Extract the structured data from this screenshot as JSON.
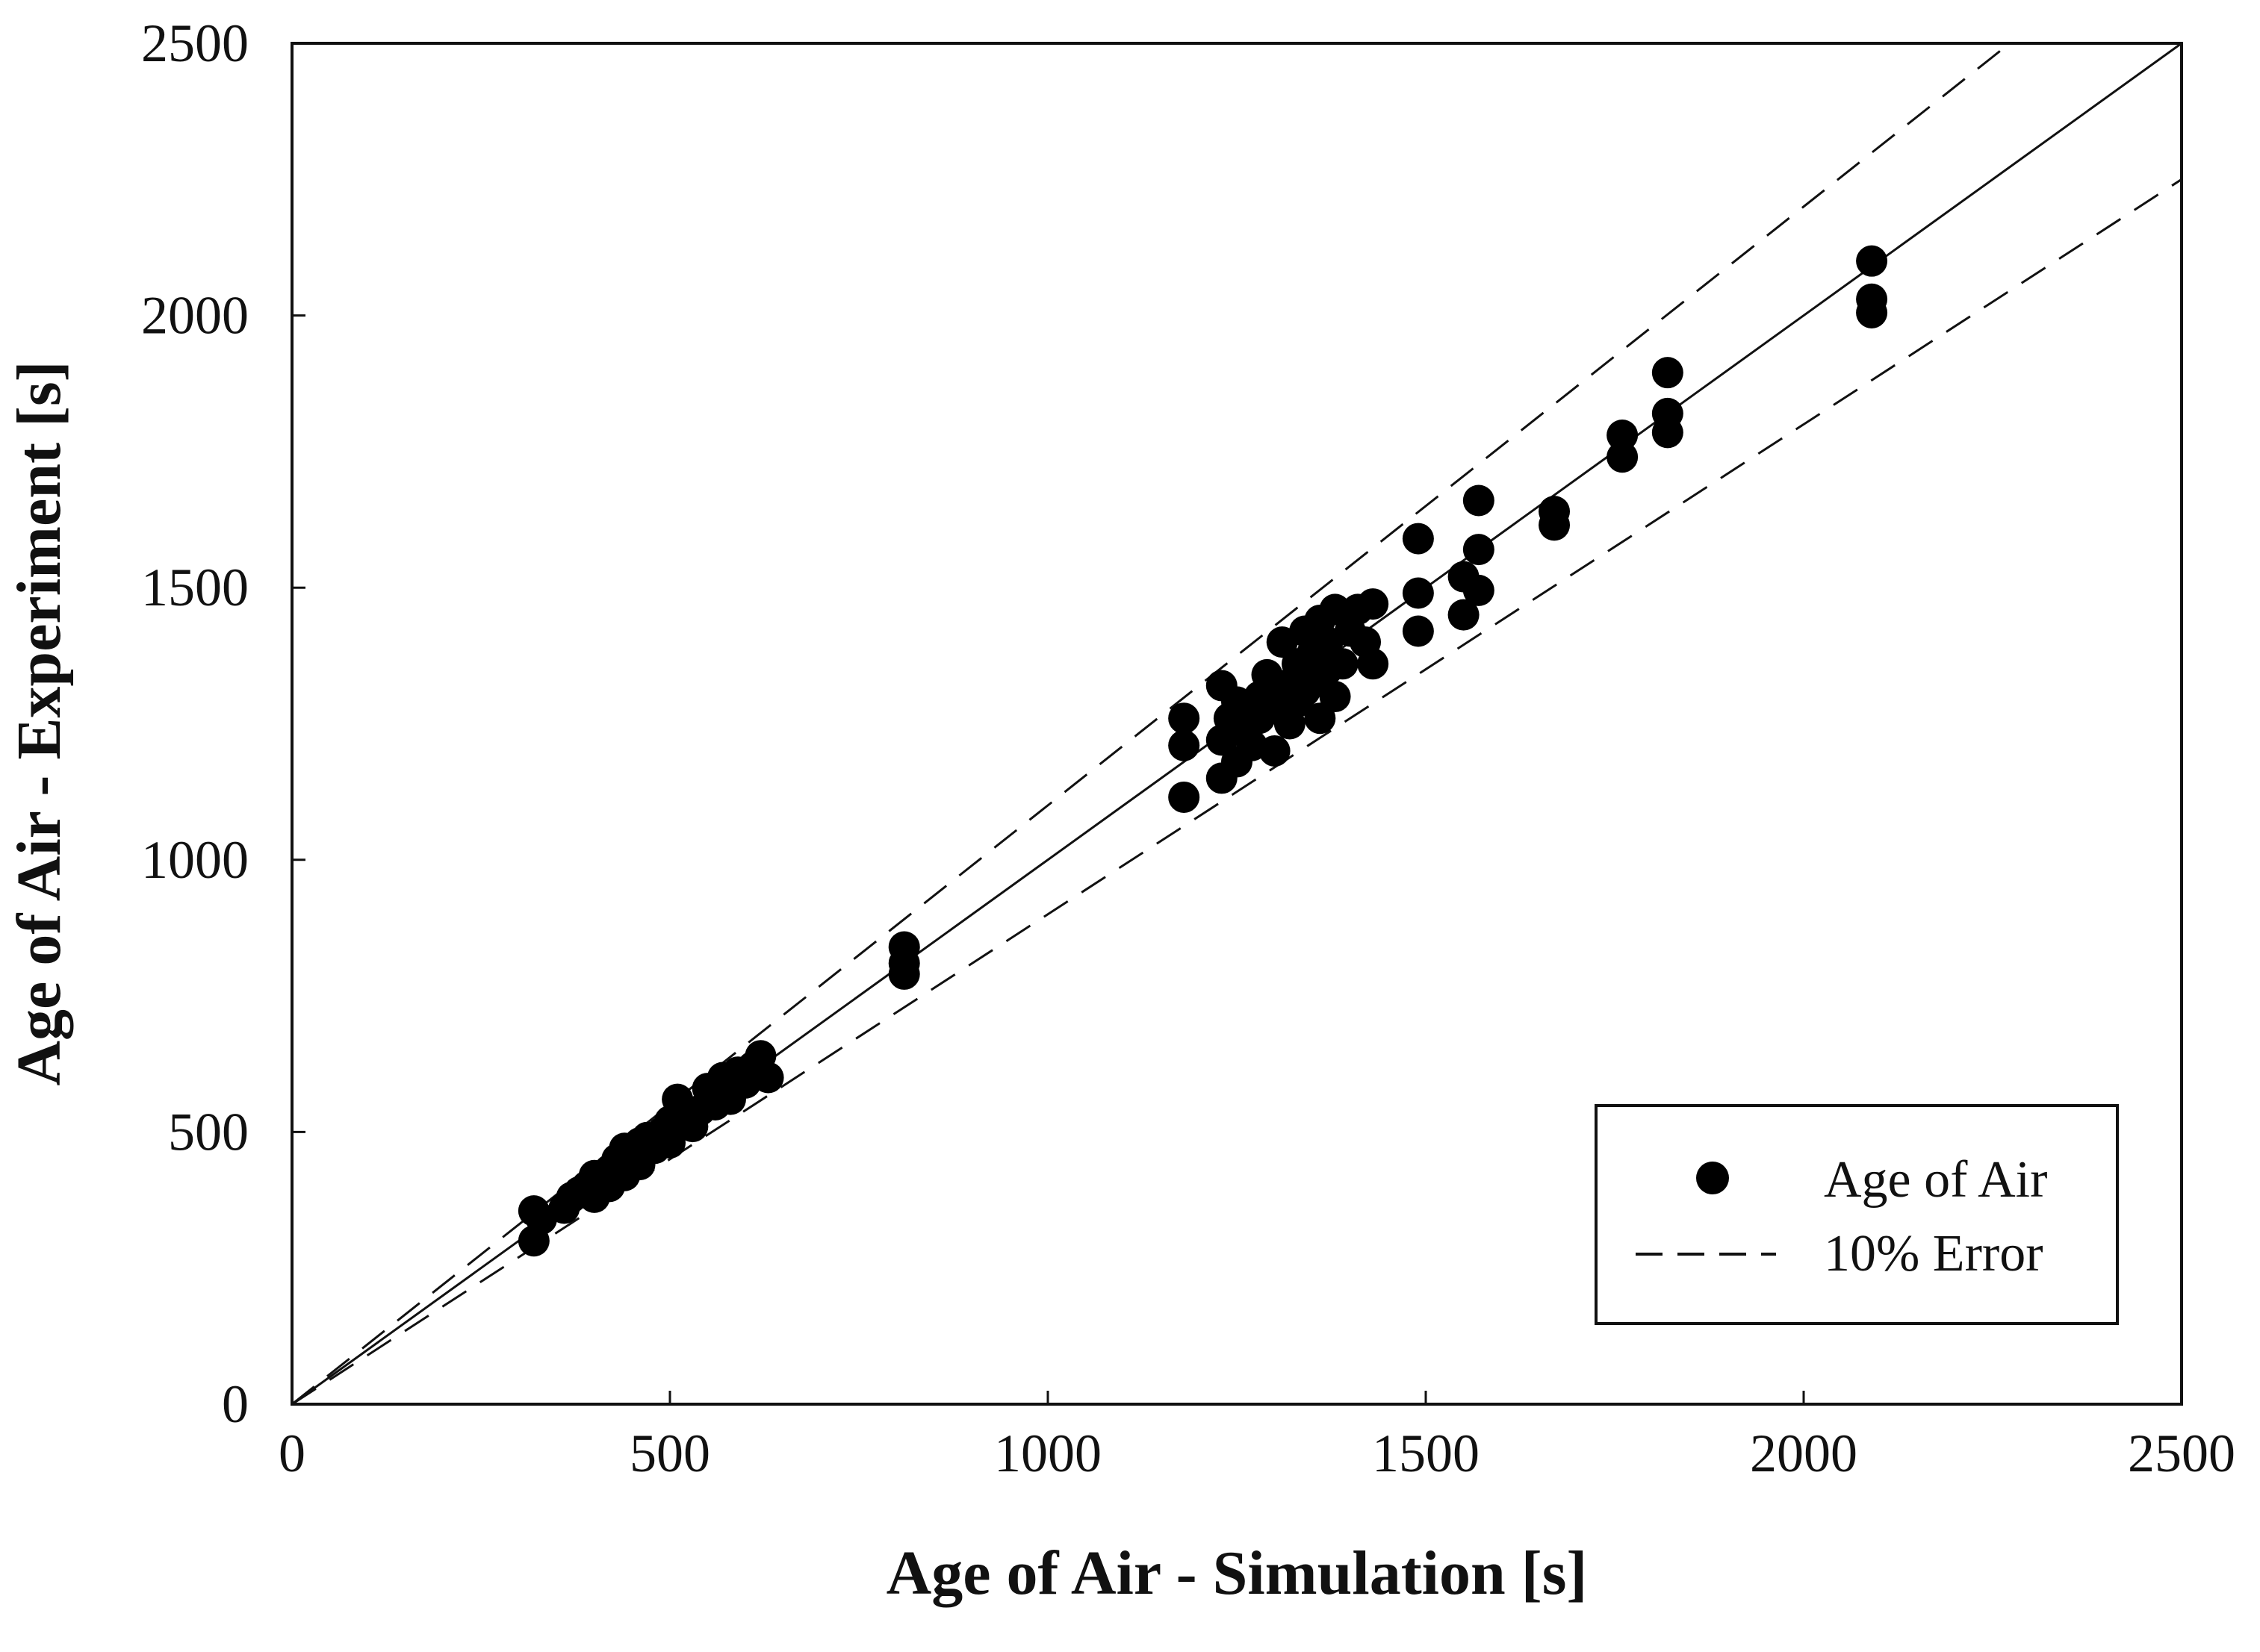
{
  "chart_data": {
    "type": "scatter",
    "title": "",
    "xlabel": "Age of Air - Simulation [s]",
    "ylabel": "Age of Air - Experiment [s]",
    "xlim": [
      0,
      2500
    ],
    "ylim": [
      0,
      2500
    ],
    "xticks": [
      "0",
      "500",
      "1000",
      "1500",
      "2000",
      "2500"
    ],
    "yticks": [
      "0",
      "500",
      "1000",
      "1500",
      "2000",
      "2500"
    ],
    "grid": false,
    "legend_position": "bottom-right",
    "legend": [
      {
        "label": "Age of Air",
        "marker": "filled-circle"
      },
      {
        "label": "10% Error",
        "marker": "dashed-line"
      }
    ],
    "reference_lines": [
      {
        "name": "y = x",
        "slope": 1.0,
        "style": "solid"
      },
      {
        "name": "+10% error",
        "slope": 1.1,
        "style": "dashed"
      },
      {
        "name": "-10% error",
        "slope": 0.9,
        "style": "dashed"
      }
    ],
    "series": [
      {
        "name": "Age of Air",
        "points": [
          [
            320,
            355
          ],
          [
            320,
            300
          ],
          [
            330,
            340
          ],
          [
            360,
            360
          ],
          [
            370,
            380
          ],
          [
            380,
            390
          ],
          [
            390,
            400
          ],
          [
            400,
            420
          ],
          [
            400,
            380
          ],
          [
            410,
            410
          ],
          [
            420,
            430
          ],
          [
            420,
            400
          ],
          [
            430,
            450
          ],
          [
            440,
            470
          ],
          [
            440,
            420
          ],
          [
            450,
            460
          ],
          [
            460,
            440
          ],
          [
            460,
            480
          ],
          [
            470,
            490
          ],
          [
            480,
            470
          ],
          [
            490,
            500
          ],
          [
            500,
            520
          ],
          [
            500,
            480
          ],
          [
            510,
            560
          ],
          [
            520,
            530
          ],
          [
            530,
            510
          ],
          [
            540,
            540
          ],
          [
            550,
            580
          ],
          [
            560,
            550
          ],
          [
            570,
            600
          ],
          [
            580,
            560
          ],
          [
            590,
            610
          ],
          [
            600,
            590
          ],
          [
            610,
            620
          ],
          [
            620,
            640
          ],
          [
            630,
            600
          ],
          [
            810,
            840
          ],
          [
            810,
            810
          ],
          [
            810,
            790
          ],
          [
            1180,
            1260
          ],
          [
            1180,
            1210
          ],
          [
            1180,
            1115
          ],
          [
            1230,
            1320
          ],
          [
            1230,
            1220
          ],
          [
            1230,
            1150
          ],
          [
            1240,
            1260
          ],
          [
            1250,
            1290
          ],
          [
            1250,
            1180
          ],
          [
            1260,
            1240
          ],
          [
            1270,
            1210
          ],
          [
            1280,
            1300
          ],
          [
            1280,
            1260
          ],
          [
            1290,
            1340
          ],
          [
            1300,
            1280
          ],
          [
            1300,
            1200
          ],
          [
            1310,
            1400
          ],
          [
            1310,
            1320
          ],
          [
            1320,
            1250
          ],
          [
            1330,
            1360
          ],
          [
            1330,
            1290
          ],
          [
            1340,
            1420
          ],
          [
            1340,
            1310
          ],
          [
            1350,
            1380
          ],
          [
            1350,
            1330
          ],
          [
            1360,
            1440
          ],
          [
            1360,
            1260
          ],
          [
            1370,
            1350
          ],
          [
            1370,
            1400
          ],
          [
            1380,
            1460
          ],
          [
            1380,
            1300
          ],
          [
            1390,
            1360
          ],
          [
            1400,
            1420
          ],
          [
            1410,
            1460
          ],
          [
            1420,
            1400
          ],
          [
            1430,
            1470
          ],
          [
            1430,
            1360
          ],
          [
            1490,
            1590
          ],
          [
            1490,
            1490
          ],
          [
            1490,
            1420
          ],
          [
            1550,
            1520
          ],
          [
            1550,
            1450
          ],
          [
            1570,
            1660
          ],
          [
            1570,
            1570
          ],
          [
            1570,
            1495
          ],
          [
            1670,
            1640
          ],
          [
            1670,
            1615
          ],
          [
            1760,
            1780
          ],
          [
            1760,
            1740
          ],
          [
            1820,
            1895
          ],
          [
            1820,
            1820
          ],
          [
            1820,
            1785
          ],
          [
            2090,
            2100
          ],
          [
            2090,
            2030
          ],
          [
            2090,
            2005
          ]
        ]
      }
    ]
  }
}
